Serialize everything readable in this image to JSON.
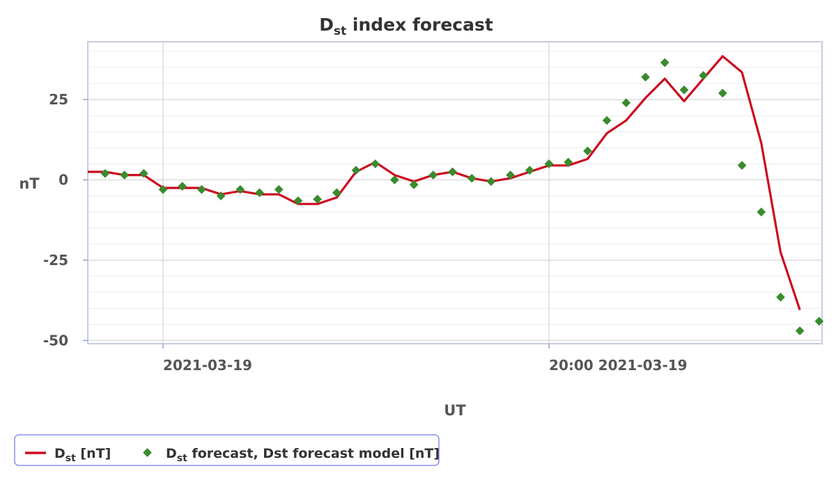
{
  "chart_data": {
    "type": "line",
    "title": {
      "main": "D",
      "sub": "st",
      "rest": " index forecast"
    },
    "xlabel": "UT",
    "ylabel": "nT",
    "x_ticks": [
      {
        "label": "2021-03-19",
        "hour": 0
      },
      {
        "label": "20:00 2021-03-19",
        "hour": 20
      }
    ],
    "y_ticks": [
      -50,
      -25,
      0,
      25
    ],
    "x_range_hours": [
      -3.9,
      34.15
    ],
    "ylim": [
      -51,
      43
    ],
    "grid": true,
    "legend_position": "bottom-left",
    "series": [
      {
        "name": "D_st [nT]",
        "legend": {
          "main": "D",
          "sub": "st",
          "rest": " [nT]"
        },
        "style": "line",
        "color": "#cc0a1e",
        "x": [
          -4,
          -3,
          -2,
          -1,
          0,
          1,
          2,
          3,
          4,
          5,
          6,
          7,
          8,
          9,
          10,
          11,
          12,
          13,
          14,
          15,
          16,
          17,
          18,
          19,
          20,
          21,
          22,
          23,
          24,
          25,
          26,
          27,
          28,
          29,
          30,
          31,
          32,
          33
        ],
        "values": [
          2.5,
          2.5,
          1.5,
          1.5,
          -2.5,
          -2.5,
          -2.5,
          -4.5,
          -3.5,
          -4.5,
          -4.5,
          -7.5,
          -7.5,
          -5.5,
          2.5,
          5.5,
          1.5,
          -0.5,
          1.5,
          2.5,
          0.5,
          -0.5,
          0.5,
          2.5,
          4.5,
          4.5,
          6.5,
          14.5,
          18.5,
          25.5,
          31.5,
          24.5,
          31.5,
          38.5,
          33.5,
          11.5,
          -22.5,
          -40.5
        ]
      },
      {
        "name": "D_st forecast, Dst forecast model [nT]",
        "legend": {
          "main": "D",
          "sub": "st",
          "rest": " forecast, Dst forecast model [nT]"
        },
        "style": "scatter",
        "color": "#3a8a2e",
        "x": [
          -3,
          -2,
          -1,
          0,
          1,
          2,
          3,
          4,
          5,
          6,
          7,
          8,
          9,
          10,
          11,
          12,
          13,
          14,
          15,
          16,
          17,
          18,
          19,
          20,
          21,
          22,
          23,
          24,
          25,
          26,
          27,
          28,
          29,
          30,
          31,
          32,
          33,
          34
        ],
        "values": [
          2,
          1.5,
          2,
          -3,
          -2,
          -3,
          -5,
          -3,
          -4,
          -3,
          -6.5,
          -6,
          -4,
          3,
          5,
          0,
          -1.5,
          1.5,
          2.5,
          0.5,
          -0.5,
          1.5,
          3,
          5,
          5.5,
          9,
          18.5,
          24,
          32,
          36.5,
          28,
          32.5,
          27,
          4.5,
          -10,
          -36.5,
          -47,
          -44
        ]
      }
    ]
  }
}
